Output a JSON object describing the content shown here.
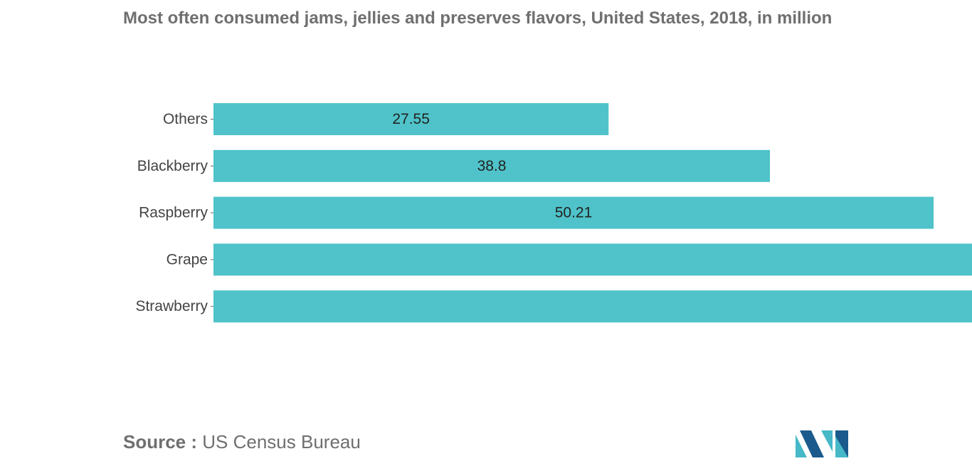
{
  "title": "Most often consumed jams, jellies and preserves flavors, United States, 2018, in million",
  "source": {
    "prefix": "Source :",
    "text": "US Census Bureau"
  },
  "colors": {
    "bar": "#4fc3c9",
    "logo_dark": "#1a5a8c",
    "logo_light": "#46b8c8"
  },
  "logo": {
    "icon": "mordor-intelligence-logo-icon"
  },
  "chart_data": {
    "type": "bar",
    "orientation": "horizontal",
    "title": "Most often consumed jams, jellies and preserves flavors, United States, 2018, in million",
    "categories": [
      "Others",
      "Blackberry",
      "Raspberry",
      "Grape",
      "Strawberry"
    ],
    "values": [
      27.55,
      38.8,
      50.21,
      null,
      null
    ],
    "data_labels": [
      "27.55",
      "38.8",
      "50.21",
      "",
      ""
    ],
    "xlim": [
      0,
      52.1
    ],
    "grid": false,
    "legend": "none",
    "xlabel": "",
    "ylabel": ""
  }
}
